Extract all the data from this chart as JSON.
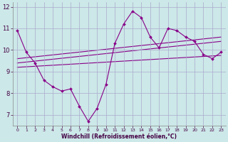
{
  "xlabel": "Windchill (Refroidissement éolien,°C)",
  "bg_color": "#cce8e8",
  "line_color": "#880088",
  "grid_color": "#aaaacc",
  "main_line_x": [
    0,
    1,
    2,
    3,
    4,
    5,
    6,
    7,
    8,
    9,
    10,
    11,
    12,
    13,
    14,
    15,
    16,
    17,
    18,
    19,
    20,
    21,
    22,
    23
  ],
  "main_line_y": [
    10.9,
    9.9,
    9.4,
    8.6,
    8.3,
    8.1,
    8.2,
    7.4,
    6.7,
    7.3,
    8.4,
    10.3,
    11.2,
    11.8,
    11.5,
    10.6,
    10.1,
    11.0,
    10.9,
    10.6,
    10.4,
    9.8,
    9.6,
    9.9
  ],
  "reg_line1_x": [
    0,
    23
  ],
  "reg_line1_y": [
    9.6,
    10.6
  ],
  "reg_line2_x": [
    0,
    23
  ],
  "reg_line2_y": [
    9.4,
    10.4
  ],
  "reg_line3_x": [
    0,
    23
  ],
  "reg_line3_y": [
    9.2,
    9.75
  ],
  "xlim": [
    -0.5,
    23.5
  ],
  "ylim": [
    6.5,
    12.2
  ],
  "yticks": [
    7,
    8,
    9,
    10,
    11,
    12
  ],
  "xticks": [
    0,
    1,
    2,
    3,
    4,
    5,
    6,
    7,
    8,
    9,
    10,
    11,
    12,
    13,
    14,
    15,
    16,
    17,
    18,
    19,
    20,
    21,
    22,
    23
  ],
  "spine_color": "#888888",
  "tick_color": "#440044",
  "xlabel_fontsize": 5.5,
  "ytick_fontsize": 6.0,
  "xtick_fontsize": 4.5
}
